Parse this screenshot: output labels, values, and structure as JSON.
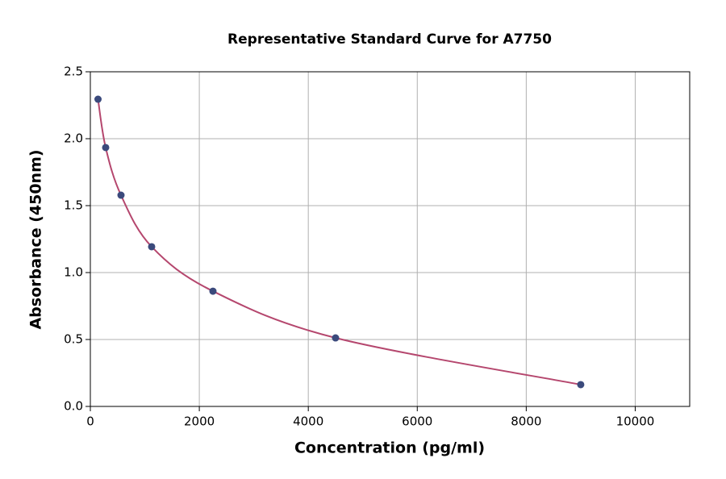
{
  "chart_data": {
    "type": "scatter",
    "title": "Representative Standard Curve for A7750",
    "x_label": "Concentration (pg/ml)",
    "y_label": "Absorbance (450nm)",
    "x": [
      140.625,
      281.25,
      562.5,
      1125,
      2250,
      4500,
      9000
    ],
    "values": [
      2.295,
      1.934,
      1.578,
      1.193,
      0.861,
      0.512,
      0.163
    ],
    "marker_color": "#3b4a7c",
    "line_color": "#b5476e",
    "xlim": [
      0,
      11000
    ],
    "ylim": [
      0,
      2.5
    ],
    "xticks": [
      0,
      2000,
      4000,
      6000,
      8000,
      10000
    ],
    "yticks": [
      {
        "value": 0,
        "label": "0.0"
      },
      0.5,
      {
        "value": 1,
        "label": "1.0"
      },
      1.5,
      {
        "value": 2,
        "label": "2.0"
      },
      2.5
    ],
    "grid": true
  }
}
